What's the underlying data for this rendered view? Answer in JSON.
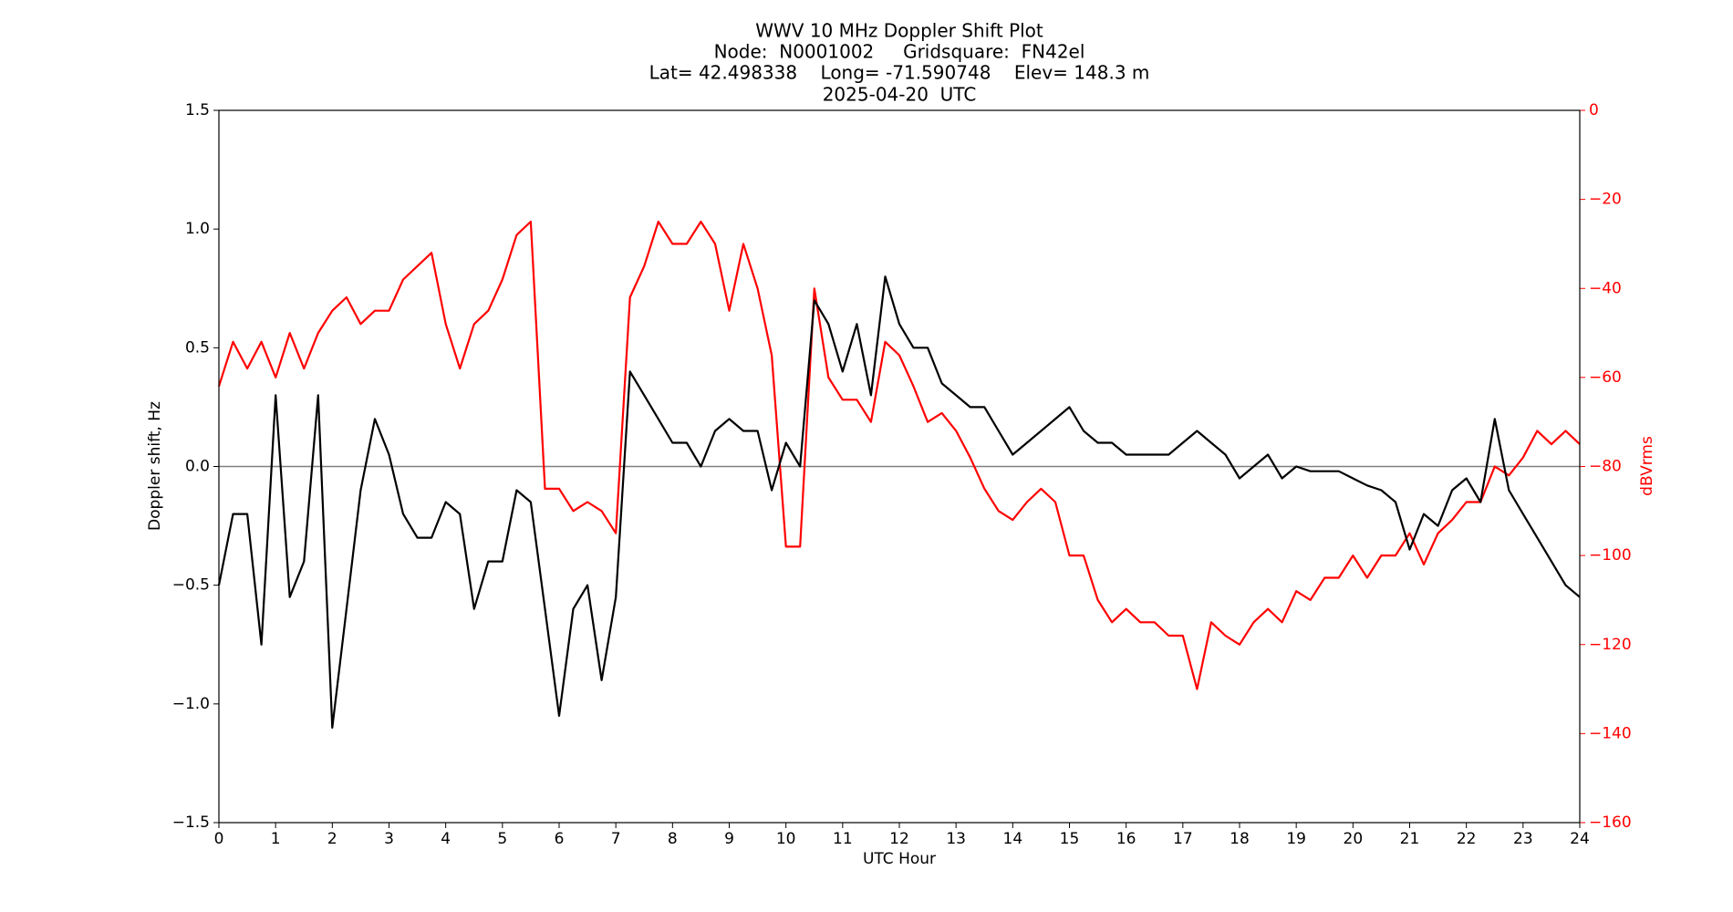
{
  "chart_data": {
    "type": "line",
    "title": [
      "WWV 10 MHz Doppler Shift Plot",
      "Node:  N0001002     Gridsquare:  FN42el",
      "Lat= 42.498338    Long= -71.590748    Elev= 148.3 m",
      "2025-04-20  UTC"
    ],
    "xlabel": "UTC Hour",
    "ylabel": "Doppler shift, Hz",
    "y2label": "dBVrms",
    "x": [
      0,
      0.25,
      0.5,
      0.75,
      1,
      1.25,
      1.5,
      1.75,
      2,
      2.25,
      2.5,
      2.75,
      3,
      3.25,
      3.5,
      3.75,
      4,
      4.25,
      4.5,
      4.75,
      5,
      5.25,
      5.5,
      5.75,
      6,
      6.25,
      6.5,
      6.75,
      7,
      7.25,
      7.5,
      7.75,
      8,
      8.25,
      8.5,
      8.75,
      9,
      9.25,
      9.5,
      9.75,
      10,
      10.25,
      10.5,
      10.75,
      11,
      11.25,
      11.5,
      11.75,
      12,
      12.25,
      12.5,
      12.75,
      13,
      13.25,
      13.5,
      13.75,
      14,
      14.25,
      14.5,
      14.75,
      15,
      15.25,
      15.5,
      15.75,
      16,
      16.25,
      16.5,
      16.75,
      17,
      17.25,
      17.5,
      17.75,
      18,
      18.25,
      18.5,
      18.75,
      19,
      19.25,
      19.5,
      19.75,
      20,
      20.25,
      20.5,
      20.75,
      21,
      21.25,
      21.5,
      21.75,
      22,
      22.25,
      22.5,
      22.75,
      23,
      23.25,
      23.5,
      23.75,
      24
    ],
    "series": [
      {
        "name": "Doppler shift",
        "color": "#000000",
        "axis": "y",
        "values": [
          -0.5,
          -0.2,
          -0.2,
          -0.75,
          0.3,
          -0.55,
          -0.4,
          0.3,
          -1.1,
          -0.6,
          -0.1,
          0.2,
          0.05,
          -0.2,
          -0.3,
          -0.3,
          -0.15,
          -0.2,
          -0.6,
          -0.4,
          -0.4,
          -0.1,
          -0.15,
          -0.6,
          -1.05,
          -0.6,
          -0.5,
          -0.9,
          -0.55,
          0.4,
          0.3,
          0.2,
          0.1,
          0.1,
          0,
          0.15,
          0.2,
          0.15,
          0.15,
          -0.1,
          0.1,
          0,
          0.7,
          0.6,
          0.4,
          0.6,
          0.3,
          0.8,
          0.6,
          0.5,
          0.5,
          0.35,
          0.3,
          0.25,
          0.25,
          0.15,
          0.05,
          0.1,
          0.15,
          0.2,
          0.25,
          0.15,
          0.1,
          0.1,
          0.05,
          0.05,
          0.05,
          0.05,
          0.1,
          0.15,
          0.1,
          0.05,
          -0.05,
          0,
          0.05,
          -0.05,
          0,
          -0.02,
          -0.02,
          -0.02,
          -0.05,
          -0.08,
          -0.1,
          -0.15,
          -0.35,
          -0.2,
          -0.25,
          -0.1,
          -0.05,
          -0.15,
          0.2,
          -0.1,
          -0.2,
          -0.3,
          -0.4,
          -0.5,
          -0.55
        ]
      },
      {
        "name": "dBVrms",
        "color": "#ff0000",
        "axis": "y2",
        "values": [
          -62,
          -52,
          -58,
          -52,
          -60,
          -50,
          -58,
          -50,
          -45,
          -42,
          -48,
          -45,
          -45,
          -38,
          -35,
          -32,
          -48,
          -58,
          -48,
          -45,
          -38,
          -28,
          -25,
          -85,
          -85,
          -90,
          -88,
          -90,
          -95,
          -42,
          -35,
          -25,
          -30,
          -30,
          -25,
          -30,
          -45,
          -30,
          -40,
          -55,
          -98,
          -98,
          -40,
          -60,
          -65,
          -65,
          -70,
          -52,
          -55,
          -62,
          -70,
          -68,
          -72,
          -78,
          -85,
          -90,
          -92,
          -88,
          -85,
          -88,
          -100,
          -100,
          -110,
          -115,
          -112,
          -115,
          -115,
          -118,
          -118,
          -130,
          -115,
          -118,
          -120,
          -115,
          -112,
          -115,
          -108,
          -110,
          -105,
          -105,
          -100,
          -105,
          -100,
          -100,
          -95,
          -102,
          -95,
          -92,
          -88,
          -88,
          -80,
          -82,
          -78,
          -72,
          -75,
          -72,
          -75
        ]
      }
    ],
    "xlim": [
      0,
      24
    ],
    "xticks": [
      0,
      1,
      2,
      3,
      4,
      5,
      6,
      7,
      8,
      9,
      10,
      11,
      12,
      13,
      14,
      15,
      16,
      17,
      18,
      19,
      20,
      21,
      22,
      23,
      24
    ],
    "ylim": [
      -1.5,
      1.5
    ],
    "yticks": [
      {
        "value": -1.5,
        "label": "−1.5"
      },
      {
        "value": -1,
        "label": "−1.0"
      },
      {
        "value": -0.5,
        "label": "−0.5"
      },
      {
        "value": 0,
        "label": "0.0"
      },
      0.5,
      {
        "value": 1,
        "label": "1.0"
      },
      1.5
    ],
    "y2lim": [
      -160,
      0
    ],
    "y2ticks": [
      {
        "value": -160,
        "label": "−160"
      },
      {
        "value": -140,
        "label": "−140"
      },
      {
        "value": -120,
        "label": "−120"
      },
      {
        "value": -100,
        "label": "−100"
      },
      {
        "value": -80,
        "label": "−80"
      },
      {
        "value": -60,
        "label": "−60"
      },
      {
        "value": -40,
        "label": "−40"
      },
      {
        "value": -20,
        "label": "−20"
      },
      0
    ],
    "hline": 0,
    "hline_color": "#808080",
    "grid": false
  }
}
